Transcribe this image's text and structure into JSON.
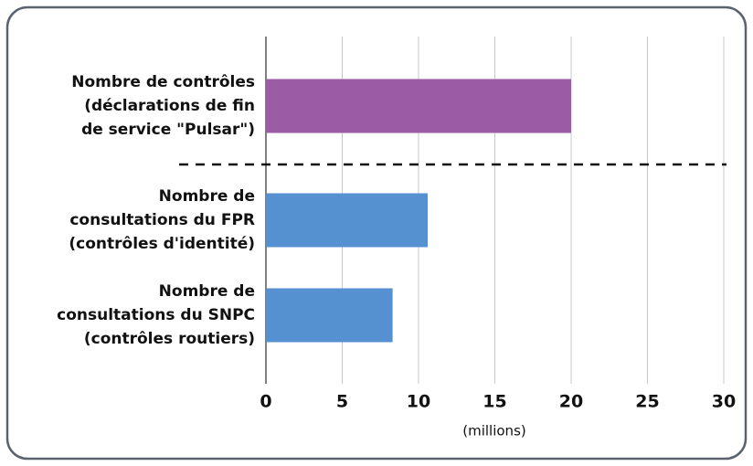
{
  "chart_data": {
    "type": "bar",
    "orientation": "horizontal",
    "categories": [
      [
        "Nombre de contrôles",
        "(déclarations de fin",
        "de service \"Pulsar\")"
      ],
      [
        "Nombre de",
        "consultations du FPR",
        "(contrôles d'identité)"
      ],
      [
        "Nombre de",
        "consultations du SNPC",
        "(contrôles routiers)"
      ]
    ],
    "values": [
      20,
      10.6,
      8.3
    ],
    "colors": [
      "#9b5ba5",
      "#5591d0",
      "#5591d0"
    ],
    "xlabel": "(millions)",
    "xlim": [
      0,
      30
    ],
    "xticks": [
      0,
      5,
      10,
      15,
      20,
      25,
      30
    ],
    "grid": true
  }
}
